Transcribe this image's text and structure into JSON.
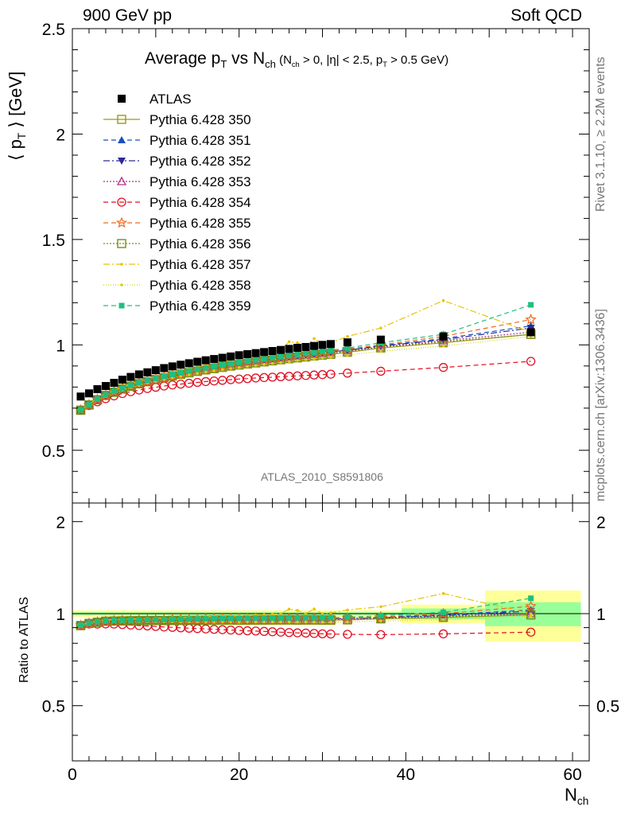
{
  "header": {
    "left": "900 GeV pp",
    "right": "Soft QCD",
    "title_main": "Average p",
    "title_main_sub": "T",
    "title_vs": " vs N",
    "title_vs_sub": "ch",
    "title_cond_1": " (N",
    "title_cond_1_sub": "ch",
    "title_cond_2": " > 0, |η| < 2.5, p",
    "title_cond_2_sub": "T",
    "title_cond_3": " > 0.5 GeV)"
  },
  "side": {
    "rivet": "Rivet 3.1.10, ≥ 2.2M events",
    "mcplots": "mcplots.cern.ch [arXiv:1306.3436]"
  },
  "analysis_label": "ATLAS_2010_S8591806",
  "ylabel_main": {
    "pre": "⟨ p",
    "sub": "T",
    "post": " ⟩ [GeV]"
  },
  "ylabel_ratio": "Ratio to ATLAS",
  "xlabel": {
    "main": "N",
    "sub": "ch"
  },
  "colors": {
    "atlas": "#000000",
    "p350": "#9a9a1a",
    "p351": "#1a4fc0",
    "p352": "#2a2a9a",
    "p353": "#b0338a",
    "p354": "#e01020",
    "p355": "#ee6a1c",
    "p356": "#7a8c18",
    "p357": "#e8c20a",
    "p358": "#d2d21a",
    "p359": "#1ec080",
    "band_yellow": "#ffff99",
    "band_green": "#99ff99"
  },
  "chart_data": {
    "type": "scatter",
    "x": [
      1,
      2,
      3,
      4,
      5,
      6,
      7,
      8,
      9,
      10,
      11,
      12,
      13,
      14,
      15,
      16,
      17,
      18,
      19,
      20,
      21,
      22,
      23,
      24,
      25,
      26,
      27,
      28,
      29,
      30,
      31,
      33,
      37,
      44.5,
      55
    ],
    "xlim": [
      0,
      62
    ],
    "xticks": [
      0,
      20,
      40,
      60
    ],
    "ylim_main": [
      0.25,
      2.5
    ],
    "yticks_main": [
      0.5,
      1,
      1.5,
      2,
      2.5
    ],
    "ylim_ratio": [
      0.33,
      2.3
    ],
    "yticks_ratio": [
      0.5,
      1,
      2
    ],
    "ratio_band": [
      {
        "x": [
          0,
          39.5
        ],
        "yellow": [
          0.975,
          1.025
        ],
        "green": [
          0.99,
          1.01
        ]
      },
      {
        "x": [
          39.5,
          49.5
        ],
        "yellow": [
          0.93,
          1.07
        ],
        "green": [
          0.96,
          1.04
        ]
      },
      {
        "x": [
          49.5,
          61
        ],
        "yellow": [
          0.81,
          1.19
        ],
        "green": [
          0.91,
          1.09
        ]
      }
    ],
    "reference": {
      "name": "ATLAS",
      "values": [
        0.755,
        0.77,
        0.79,
        0.805,
        0.82,
        0.835,
        0.848,
        0.86,
        0.87,
        0.88,
        0.89,
        0.898,
        0.906,
        0.913,
        0.92,
        0.927,
        0.933,
        0.939,
        0.945,
        0.951,
        0.956,
        0.961,
        0.966,
        0.971,
        0.976,
        0.981,
        0.986,
        0.99,
        0.995,
        1.0,
        1.004,
        1.012,
        1.025,
        1.04,
        1.06
      ]
    },
    "series": [
      {
        "name": "Pythia 6.428 350",
        "marker": "square-open",
        "dash": "",
        "values": [
          0.69,
          0.715,
          0.74,
          0.76,
          0.775,
          0.79,
          0.803,
          0.815,
          0.825,
          0.835,
          0.844,
          0.852,
          0.86,
          0.867,
          0.874,
          0.881,
          0.887,
          0.893,
          0.899,
          0.904,
          0.909,
          0.914,
          0.919,
          0.924,
          0.929,
          0.934,
          0.938,
          0.942,
          0.947,
          0.951,
          0.955,
          0.965,
          0.985,
          1.01,
          1.05
        ]
      },
      {
        "name": "Pythia 6.428 351",
        "marker": "triangle-up",
        "dash": "6,4",
        "values": [
          0.692,
          0.717,
          0.742,
          0.762,
          0.778,
          0.793,
          0.806,
          0.818,
          0.829,
          0.839,
          0.848,
          0.857,
          0.865,
          0.873,
          0.88,
          0.887,
          0.894,
          0.9,
          0.906,
          0.912,
          0.918,
          0.923,
          0.929,
          0.934,
          0.939,
          0.944,
          0.949,
          0.954,
          0.958,
          0.963,
          0.967,
          0.976,
          0.996,
          1.03,
          1.09
        ]
      },
      {
        "name": "Pythia 6.428 352",
        "marker": "triangle-down",
        "dash": "8,3,2,3",
        "values": [
          0.692,
          0.716,
          0.741,
          0.761,
          0.777,
          0.792,
          0.805,
          0.817,
          0.828,
          0.838,
          0.847,
          0.856,
          0.864,
          0.872,
          0.879,
          0.886,
          0.893,
          0.899,
          0.905,
          0.911,
          0.917,
          0.922,
          0.928,
          0.933,
          0.938,
          0.943,
          0.948,
          0.953,
          0.957,
          0.962,
          0.966,
          0.975,
          0.994,
          1.025,
          1.08
        ]
      },
      {
        "name": "Pythia 6.428 353",
        "marker": "triangle-up-open",
        "dash": "2,2",
        "values": [
          0.69,
          0.715,
          0.74,
          0.76,
          0.776,
          0.791,
          0.804,
          0.816,
          0.827,
          0.837,
          0.846,
          0.855,
          0.863,
          0.871,
          0.878,
          0.885,
          0.892,
          0.898,
          0.904,
          0.91,
          0.915,
          0.921,
          0.926,
          0.931,
          0.936,
          0.941,
          0.946,
          0.95,
          0.955,
          0.959,
          0.963,
          0.972,
          0.99,
          1.02,
          1.06
        ]
      },
      {
        "name": "Pythia 6.428 354",
        "marker": "circle-open",
        "dash": "6,4",
        "values": [
          0.69,
          0.712,
          0.73,
          0.745,
          0.758,
          0.769,
          0.778,
          0.786,
          0.793,
          0.799,
          0.805,
          0.81,
          0.814,
          0.818,
          0.822,
          0.826,
          0.829,
          0.832,
          0.835,
          0.838,
          0.84,
          0.843,
          0.845,
          0.847,
          0.849,
          0.851,
          0.853,
          0.855,
          0.857,
          0.859,
          0.861,
          0.866,
          0.875,
          0.893,
          0.922
        ]
      },
      {
        "name": "Pythia 6.428 355",
        "marker": "star-open",
        "dash": "6,4",
        "values": [
          0.691,
          0.716,
          0.742,
          0.762,
          0.779,
          0.794,
          0.807,
          0.819,
          0.83,
          0.84,
          0.85,
          0.859,
          0.867,
          0.875,
          0.882,
          0.89,
          0.896,
          0.903,
          0.909,
          0.915,
          0.921,
          0.926,
          0.932,
          0.937,
          0.942,
          0.947,
          0.952,
          0.957,
          0.961,
          0.966,
          0.97,
          0.98,
          1.0,
          1.04,
          1.12
        ]
      },
      {
        "name": "Pythia 6.428 356",
        "marker": "square-open",
        "dash": "2,2",
        "values": [
          0.69,
          0.715,
          0.74,
          0.76,
          0.776,
          0.791,
          0.804,
          0.816,
          0.826,
          0.836,
          0.845,
          0.854,
          0.862,
          0.869,
          0.876,
          0.883,
          0.89,
          0.896,
          0.902,
          0.907,
          0.913,
          0.918,
          0.923,
          0.928,
          0.933,
          0.938,
          0.942,
          0.947,
          0.951,
          0.955,
          0.959,
          0.968,
          0.988,
          1.015,
          1.05
        ]
      },
      {
        "name": "Pythia 6.428 357",
        "marker": "dot",
        "dash": "8,3,2,3",
        "values": [
          0.693,
          0.72,
          0.746,
          0.767,
          0.785,
          0.801,
          0.815,
          0.828,
          0.84,
          0.851,
          0.861,
          0.871,
          0.88,
          0.889,
          0.897,
          0.905,
          0.913,
          0.92,
          0.927,
          0.934,
          0.942,
          0.95,
          0.958,
          0.966,
          0.975,
          1.015,
          1.01,
          0.99,
          1.03,
          1.0,
          1.01,
          1.04,
          1.08,
          1.21,
          1.06
        ]
      },
      {
        "name": "Pythia 6.428 358",
        "marker": "dot",
        "dash": "1,2",
        "values": [
          0.688,
          0.712,
          0.736,
          0.755,
          0.771,
          0.785,
          0.797,
          0.808,
          0.818,
          0.827,
          0.836,
          0.844,
          0.851,
          0.858,
          0.865,
          0.871,
          0.877,
          0.883,
          0.888,
          0.893,
          0.898,
          0.903,
          0.908,
          0.913,
          0.917,
          0.921,
          0.926,
          0.93,
          0.934,
          0.938,
          0.942,
          0.951,
          0.97,
          0.995,
          1.04
        ]
      },
      {
        "name": "Pythia 6.428 359",
        "marker": "square-filled-small",
        "dash": "6,4",
        "values": [
          0.692,
          0.717,
          0.743,
          0.763,
          0.78,
          0.795,
          0.808,
          0.82,
          0.831,
          0.841,
          0.851,
          0.86,
          0.868,
          0.876,
          0.884,
          0.891,
          0.898,
          0.905,
          0.911,
          0.917,
          0.923,
          0.929,
          0.934,
          0.94,
          0.945,
          0.95,
          0.955,
          0.96,
          0.965,
          0.97,
          0.974,
          0.985,
          1.01,
          1.05,
          1.19
        ]
      }
    ]
  }
}
